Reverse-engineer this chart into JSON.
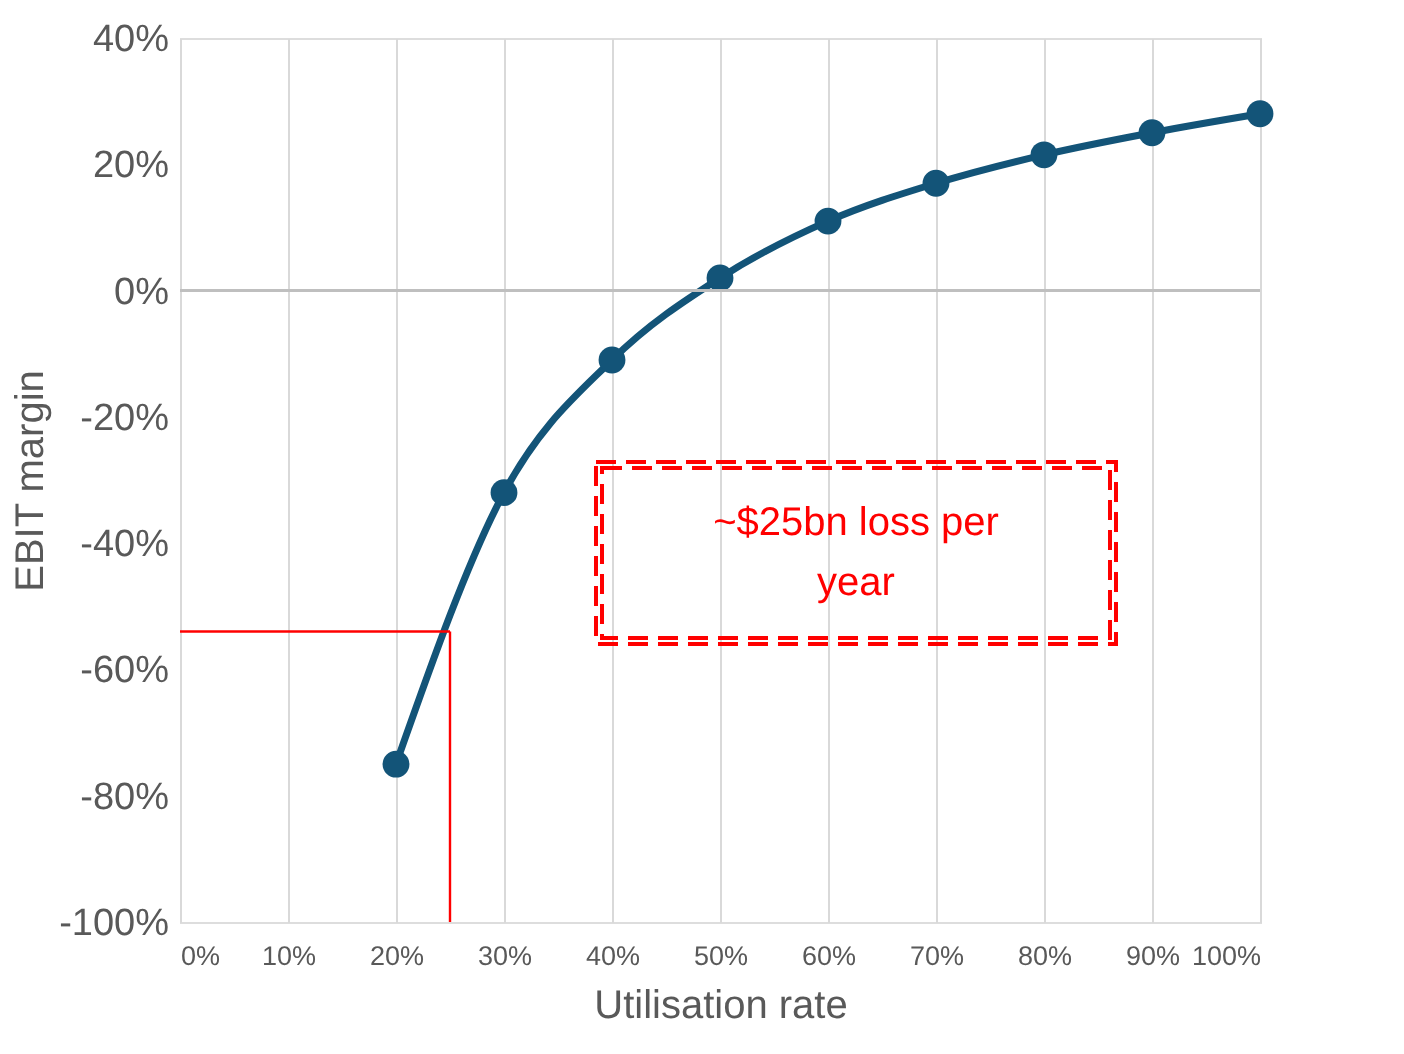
{
  "chart_data": {
    "type": "line",
    "xlabel": "Utilisation rate",
    "ylabel": "EBIT margin",
    "x": [
      20,
      30,
      40,
      50,
      60,
      70,
      80,
      90,
      100
    ],
    "series": [
      {
        "color": "#135478",
        "values": [
          -75,
          -32,
          -11,
          2,
          11,
          17,
          21.5,
          25,
          28
        ]
      }
    ],
    "xlim": [
      0,
      100
    ],
    "xticks": [
      {
        "value": 0,
        "label": "0%"
      },
      {
        "value": 10,
        "label": "10%"
      },
      {
        "value": 20,
        "label": "20%"
      },
      {
        "value": 30,
        "label": "30%"
      },
      {
        "value": 40,
        "label": "40%"
      },
      {
        "value": 50,
        "label": "50%"
      },
      {
        "value": 60,
        "label": "60%"
      },
      {
        "value": 70,
        "label": "70%"
      },
      {
        "value": 80,
        "label": "80%"
      },
      {
        "value": 90,
        "label": "90%"
      },
      {
        "value": 100,
        "label": "100%"
      }
    ],
    "ylim": [
      -100,
      40
    ],
    "yticks": [
      {
        "value": -100,
        "label": "-100%"
      },
      {
        "value": -80,
        "label": "-80%"
      },
      {
        "value": -60,
        "label": "-60%"
      },
      {
        "value": -40,
        "label": "-40%"
      },
      {
        "value": -20,
        "label": "-20%"
      },
      {
        "value": 0,
        "label": "0%"
      },
      {
        "value": 20,
        "label": "20%"
      },
      {
        "value": 40,
        "label": "40%"
      }
    ],
    "ref_lines": [
      {
        "axis": "y",
        "value": 0,
        "color": "#bfbfbf"
      },
      {
        "axis": "x",
        "value": 25,
        "color": "#ff0000"
      },
      {
        "axis": "y",
        "value": -54,
        "color": "#ff0000"
      }
    ],
    "annotations": [
      "~$25bn loss per year"
    ],
    "grid": "x",
    "marker": "circle",
    "line_style": "solid"
  }
}
